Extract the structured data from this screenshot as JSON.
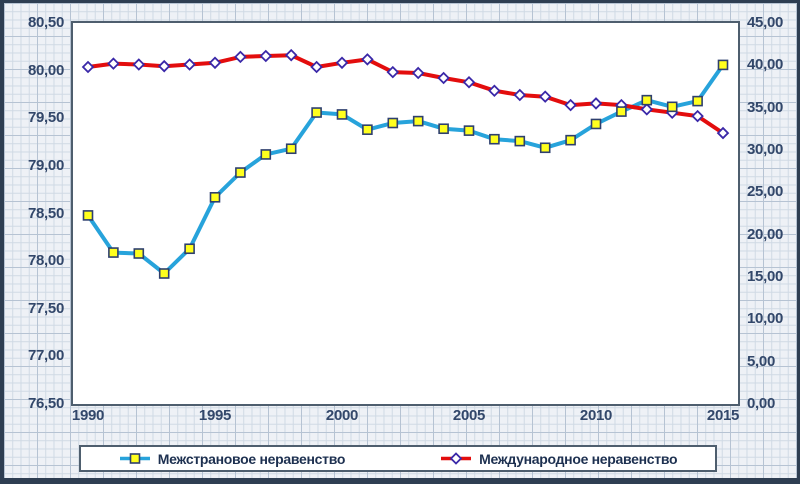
{
  "chart_data": {
    "type": "line",
    "x": [
      1990,
      1991,
      1992,
      1993,
      1994,
      1995,
      1996,
      1997,
      1998,
      1999,
      2000,
      2001,
      2002,
      2003,
      2004,
      2005,
      2006,
      2007,
      2008,
      2009,
      2010,
      2011,
      2012,
      2013,
      2014,
      2015
    ],
    "series": [
      {
        "name": "Межстрановое неравенство",
        "axis": "left",
        "line_color": "#27a3db",
        "marker": "square",
        "marker_fill": "#ffff1e",
        "marker_border": "#2e3f6e",
        "values": [
          78.48,
          78.09,
          78.08,
          77.87,
          78.13,
          78.67,
          78.93,
          79.12,
          79.18,
          79.56,
          79.54,
          79.38,
          79.45,
          79.47,
          79.39,
          79.37,
          79.28,
          79.26,
          79.19,
          79.27,
          79.44,
          79.57,
          79.69,
          79.62,
          79.68,
          80.06
        ]
      },
      {
        "name": "Международное неравенство",
        "axis": "right",
        "line_color": "#e30d0d",
        "marker": "diamond",
        "marker_fill": "#ffffff",
        "marker_border": "#3a28a8",
        "values": [
          39.8,
          40.2,
          40.1,
          39.9,
          40.1,
          40.3,
          41.0,
          41.1,
          41.2,
          39.8,
          40.3,
          40.7,
          39.2,
          39.1,
          38.5,
          38.0,
          37.0,
          36.5,
          36.3,
          35.3,
          35.5,
          35.3,
          34.8,
          34.4,
          34.0,
          32.0
        ]
      }
    ],
    "left_axis": {
      "min": 76.5,
      "max": 80.5,
      "step": 0.5,
      "tick_labels": [
        "80,50",
        "80,00",
        "79,50",
        "79,00",
        "78,50",
        "78,00",
        "77,50",
        "77,00",
        "76,50"
      ]
    },
    "right_axis": {
      "min": 0,
      "max": 45,
      "step": 5,
      "tick_labels": [
        "45,00",
        "40,00",
        "35,00",
        "30,00",
        "25,00",
        "20,00",
        "15,00",
        "10,00",
        "5,00",
        "0,00"
      ]
    },
    "x_ticks": [
      "1990",
      "1995",
      "2000",
      "2005",
      "2010",
      "2015"
    ],
    "grid": false,
    "legend_position": "bottom"
  },
  "colors": {
    "axis_text": "#32476a",
    "legend_text": "#1d3050",
    "plot_border": "#4e5e6e",
    "figure_border": "#2e3e52",
    "background": "#eef1f6"
  }
}
